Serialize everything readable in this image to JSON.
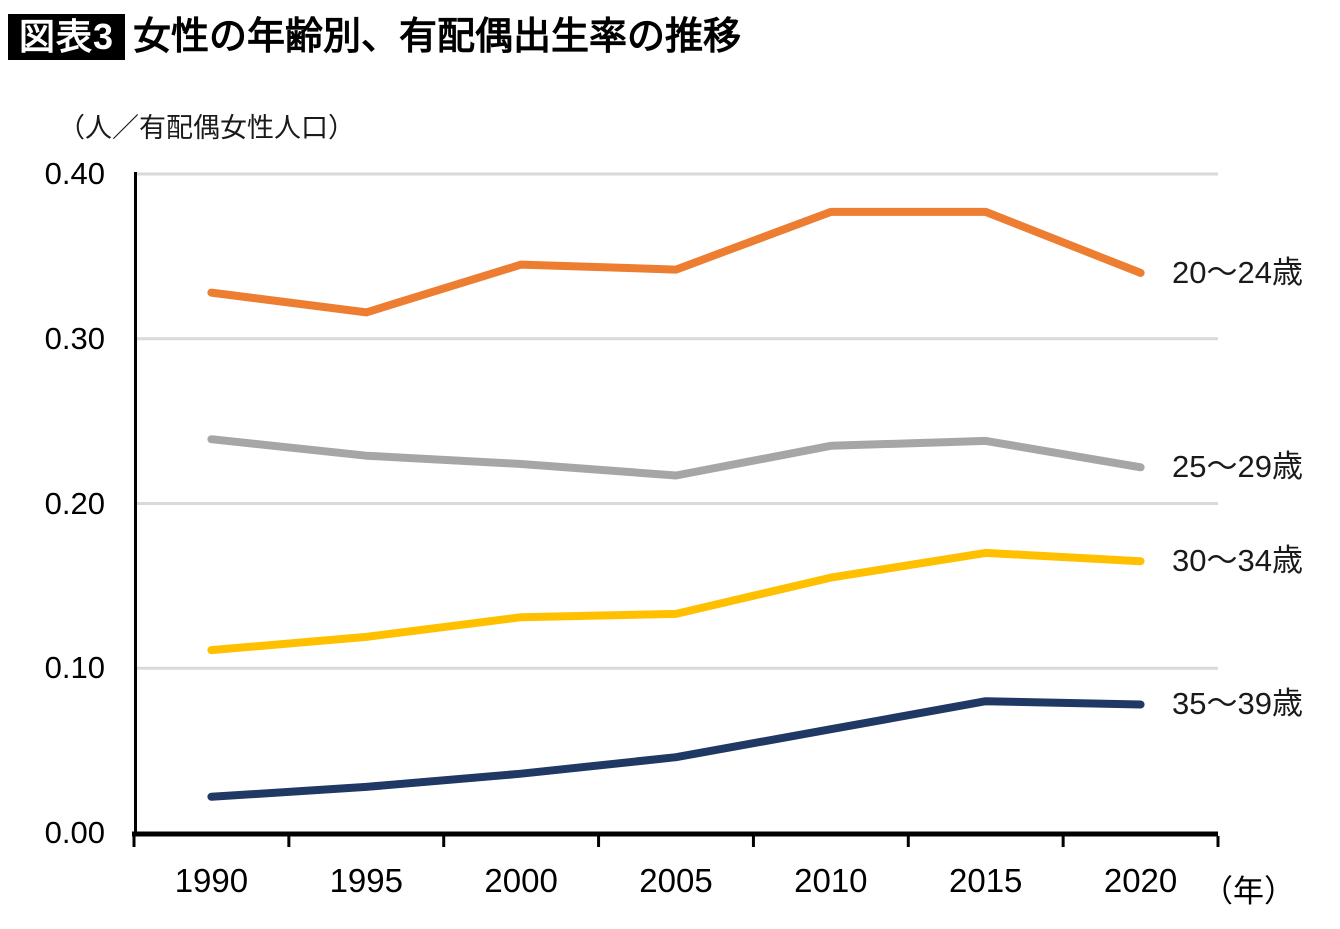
{
  "figure": {
    "badge_label": "図表3"
  },
  "chart_data": {
    "type": "line",
    "title": "女性の年齢別、有配偶出生率の推移",
    "unit_label": "（人／有配偶女性人口）",
    "x_axis_suffix": "（年）",
    "categories": [
      "1990",
      "1995",
      "2000",
      "2005",
      "2010",
      "2015",
      "2020"
    ],
    "y_ticks": [
      {
        "label": "0.00",
        "value": 0.0
      },
      {
        "label": "0.10",
        "value": 0.1
      },
      {
        "label": "0.20",
        "value": 0.2
      },
      {
        "label": "0.30",
        "value": 0.3
      },
      {
        "label": "0.40",
        "value": 0.4
      }
    ],
    "ylim": [
      0.0,
      0.4
    ],
    "grid": "horizontal",
    "legend_position": "right-of-line-ends",
    "grid_color": "#D9D9D9",
    "axis_color": "#000000",
    "series": [
      {
        "name": "20〜24歳",
        "color": "#ED7D31",
        "values": [
          0.328,
          0.316,
          0.345,
          0.342,
          0.377,
          0.377,
          0.34
        ]
      },
      {
        "name": "25〜29歳",
        "color": "#A6A6A6",
        "values": [
          0.239,
          0.229,
          0.224,
          0.217,
          0.235,
          0.238,
          0.222
        ]
      },
      {
        "name": "30〜34歳",
        "color": "#FFC000",
        "values": [
          0.111,
          0.119,
          0.131,
          0.133,
          0.155,
          0.17,
          0.165
        ]
      },
      {
        "name": "35〜39歳",
        "color": "#1F3864",
        "values": [
          0.022,
          0.028,
          0.036,
          0.046,
          0.063,
          0.08,
          0.078
        ]
      }
    ]
  }
}
